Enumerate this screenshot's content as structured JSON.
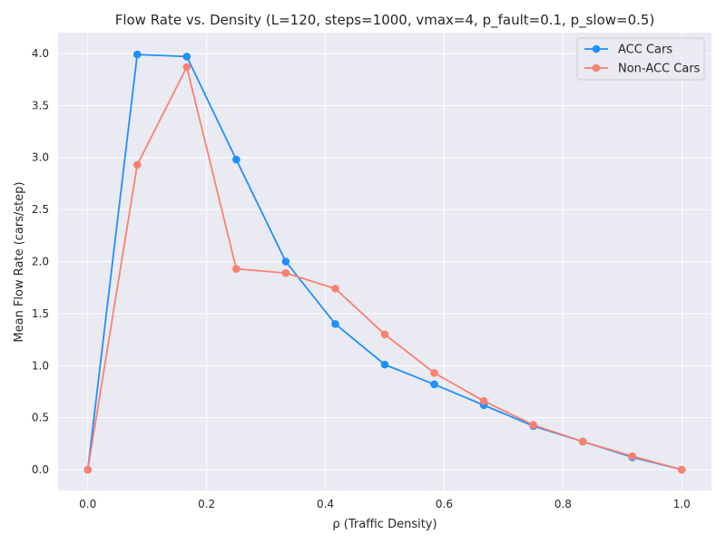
{
  "chart_data": {
    "type": "line",
    "title": "Flow Rate vs. Density (L=120, steps=1000, vmax=4, p_fault=0.1, p_slow=0.5)",
    "xlabel": "ρ (Traffic Density)",
    "ylabel": "Mean Flow Rate (cars/step)",
    "xlim": [
      -0.05,
      1.05
    ],
    "ylim": [
      -0.2,
      4.2
    ],
    "x_ticks": [
      0.0,
      0.2,
      0.4,
      0.6,
      0.8,
      1.0
    ],
    "x_tick_labels": [
      "0.0",
      "0.2",
      "0.4",
      "0.6",
      "0.8",
      "1.0"
    ],
    "y_ticks": [
      0.0,
      0.5,
      1.0,
      1.5,
      2.0,
      2.5,
      3.0,
      3.5,
      4.0
    ],
    "y_tick_labels": [
      "0.0",
      "0.5",
      "1.0",
      "1.5",
      "2.0",
      "2.5",
      "3.0",
      "3.5",
      "4.0"
    ],
    "grid": true,
    "legend_position": "top-right",
    "background_color": "#eaeaf2",
    "x": [
      0.0,
      0.0833,
      0.1667,
      0.25,
      0.3333,
      0.4167,
      0.5,
      0.5833,
      0.6667,
      0.75,
      0.8333,
      0.9167,
      1.0
    ],
    "series": [
      {
        "name": "ACC Cars",
        "color": "#1e90ff",
        "values": [
          0.0,
          3.99,
          3.97,
          2.98,
          2.0,
          1.4,
          1.01,
          0.82,
          0.62,
          0.42,
          0.27,
          0.12,
          0.0
        ]
      },
      {
        "name": "Non-ACC Cars",
        "color": "#fa8072",
        "values": [
          0.0,
          2.93,
          3.87,
          1.93,
          1.89,
          1.74,
          1.3,
          0.93,
          0.66,
          0.43,
          0.27,
          0.13,
          0.0
        ]
      }
    ]
  }
}
